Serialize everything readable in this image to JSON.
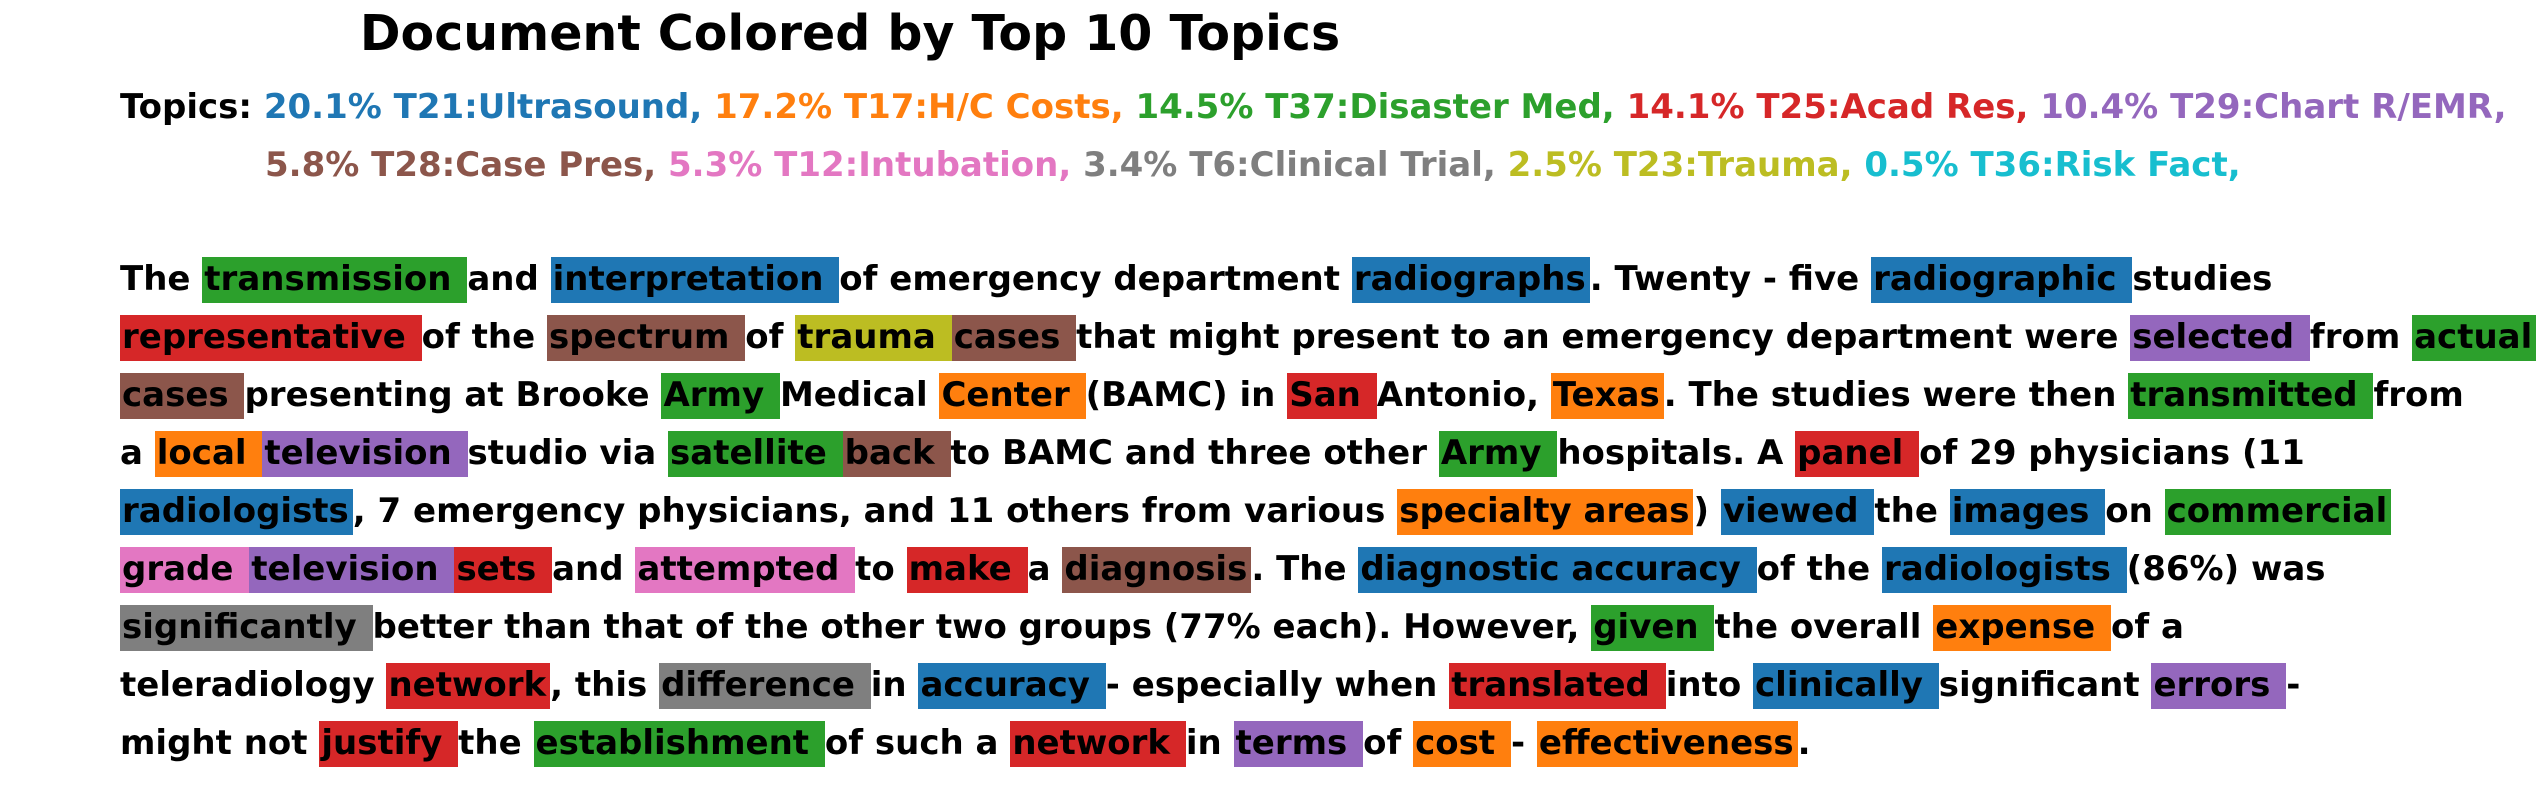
{
  "title": "Document Colored by Top 10 Topics",
  "topics_label": "Topics:",
  "topics": [
    {
      "label": "20.1% T21:Ultrasound,",
      "color": "#1f77b4"
    },
    {
      "label": "17.2% T17:H/C Costs,",
      "color": "#ff7f0e"
    },
    {
      "label": "14.5% T37:Disaster Med,",
      "color": "#2ca02c"
    },
    {
      "label": "14.1% T25:Acad Res,",
      "color": "#d62728"
    },
    {
      "label": "10.4% T29:Chart R/EMR,",
      "color": "#9467bd"
    },
    {
      "label": "5.8% T28:Case Pres,",
      "color": "#8c564b"
    },
    {
      "label": "5.3% T12:Intubation,",
      "color": "#e377c2"
    },
    {
      "label": "3.4% T6:Clinical Trial,",
      "color": "#7f7f7f"
    },
    {
      "label": "2.5% T23:Trauma,",
      "color": "#bcbd22"
    },
    {
      "label": "0.5% T36:Risk Fact,",
      "color": "#17becf"
    }
  ],
  "document_lines": [
    [
      {
        "text": "The "
      },
      {
        "text": "transmission ",
        "topic": 2
      },
      {
        "text": "and "
      },
      {
        "text": "interpretation ",
        "topic": 0
      },
      {
        "text": "of emergency department "
      },
      {
        "text": "radiographs",
        "topic": 0
      },
      {
        "text": ". Twenty - five "
      },
      {
        "text": "radiographic ",
        "topic": 0
      },
      {
        "text": "studies"
      }
    ],
    [
      {
        "text": "representative ",
        "topic": 3
      },
      {
        "text": "of the "
      },
      {
        "text": "spectrum ",
        "topic": 5
      },
      {
        "text": "of "
      },
      {
        "text": "trauma ",
        "topic": 8
      },
      {
        "text": "cases ",
        "topic": 5
      },
      {
        "text": "that might present to an emergency department were "
      },
      {
        "text": "selected ",
        "topic": 4
      },
      {
        "text": "from "
      },
      {
        "text": "actual ",
        "topic": 2
      }
    ],
    [
      {
        "text": "cases ",
        "topic": 5
      },
      {
        "text": "presenting at Brooke "
      },
      {
        "text": "Army ",
        "topic": 2
      },
      {
        "text": "Medical "
      },
      {
        "text": "Center ",
        "topic": 1
      },
      {
        "text": "(BAMC) in "
      },
      {
        "text": "San ",
        "topic": 3
      },
      {
        "text": "Antonio, "
      },
      {
        "text": "Texas",
        "topic": 1
      },
      {
        "text": ". The studies were then "
      },
      {
        "text": "transmitted ",
        "topic": 2
      },
      {
        "text": "from"
      }
    ],
    [
      {
        "text": "a "
      },
      {
        "text": "local ",
        "topic": 1
      },
      {
        "text": "television ",
        "topic": 4
      },
      {
        "text": "studio via "
      },
      {
        "text": "satellite ",
        "topic": 2
      },
      {
        "text": "back ",
        "topic": 5
      },
      {
        "text": "to BAMC and three other "
      },
      {
        "text": "Army ",
        "topic": 2
      },
      {
        "text": "hospitals. A "
      },
      {
        "text": "panel ",
        "topic": 3
      },
      {
        "text": "of 29 physicians (11"
      }
    ],
    [
      {
        "text": "radiologists",
        "topic": 0
      },
      {
        "text": ", 7 emergency physicians, and 11 others from various "
      },
      {
        "text": "specialty areas",
        "topic": 1
      },
      {
        "text": ") "
      },
      {
        "text": "viewed ",
        "topic": 0
      },
      {
        "text": "the "
      },
      {
        "text": "images ",
        "topic": 0
      },
      {
        "text": "on "
      },
      {
        "text": "commercial ",
        "topic": 2
      }
    ],
    [
      {
        "text": "grade ",
        "topic": 6
      },
      {
        "text": "television ",
        "topic": 4
      },
      {
        "text": "sets ",
        "topic": 3
      },
      {
        "text": "and "
      },
      {
        "text": "attempted ",
        "topic": 6
      },
      {
        "text": "to "
      },
      {
        "text": "make ",
        "topic": 3
      },
      {
        "text": "a "
      },
      {
        "text": "diagnosis",
        "topic": 5
      },
      {
        "text": ". The "
      },
      {
        "text": "diagnostic accuracy ",
        "topic": 0
      },
      {
        "text": "of the "
      },
      {
        "text": "radiologists ",
        "topic": 0
      },
      {
        "text": "(86%) was"
      }
    ],
    [
      {
        "text": "significantly ",
        "topic": 7
      },
      {
        "text": "better than that of the other two groups (77% each). However, "
      },
      {
        "text": "given ",
        "topic": 2
      },
      {
        "text": "the overall "
      },
      {
        "text": "expense ",
        "topic": 1
      },
      {
        "text": "of a"
      }
    ],
    [
      {
        "text": "teleradiology "
      },
      {
        "text": "network",
        "topic": 3
      },
      {
        "text": ", this "
      },
      {
        "text": "difference ",
        "topic": 7
      },
      {
        "text": "in "
      },
      {
        "text": "accuracy ",
        "topic": 0
      },
      {
        "text": "- especially when "
      },
      {
        "text": "translated ",
        "topic": 3
      },
      {
        "text": "into "
      },
      {
        "text": "clinically ",
        "topic": 0
      },
      {
        "text": "significant "
      },
      {
        "text": "errors ",
        "topic": 4
      },
      {
        "text": "-"
      }
    ],
    [
      {
        "text": "might not "
      },
      {
        "text": "justify ",
        "topic": 3
      },
      {
        "text": "the "
      },
      {
        "text": "establishment ",
        "topic": 2
      },
      {
        "text": "of such a "
      },
      {
        "text": "network ",
        "topic": 3
      },
      {
        "text": "in "
      },
      {
        "text": "terms ",
        "topic": 4
      },
      {
        "text": "of "
      },
      {
        "text": "cost ",
        "topic": 1
      },
      {
        "text": "- "
      },
      {
        "text": "effectiveness",
        "topic": 1
      },
      {
        "text": "."
      }
    ]
  ]
}
